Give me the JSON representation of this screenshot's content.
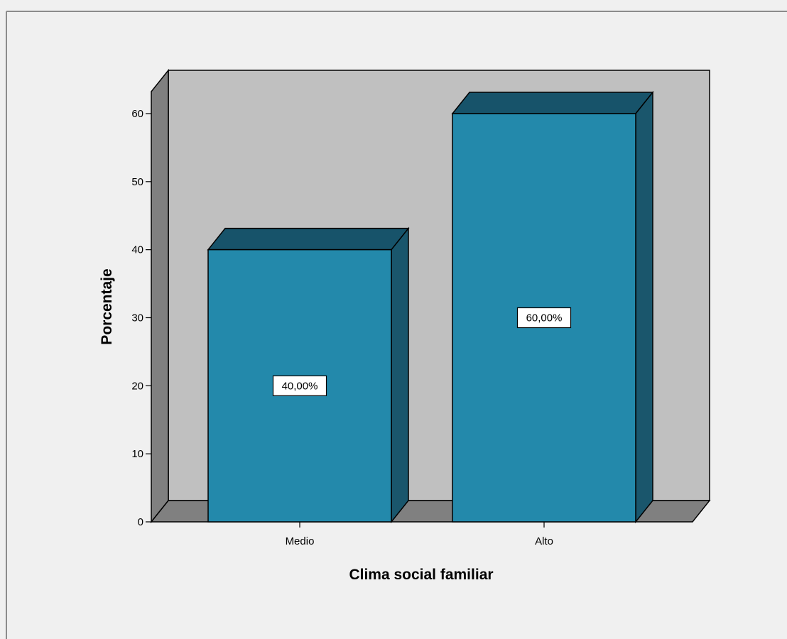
{
  "chart_data": {
    "type": "bar",
    "categories": [
      "Medio",
      "Alto"
    ],
    "values": [
      40,
      60
    ],
    "data_labels": [
      "40,00%",
      "60,00%"
    ],
    "xlabel": "Clima social familiar",
    "ylabel": "Porcentaje",
    "ylim": [
      0,
      60
    ],
    "yticks": [
      "0",
      "10",
      "20",
      "30",
      "40",
      "50",
      "60"
    ],
    "three_d": true,
    "grid": false,
    "legend": "none",
    "colors": {
      "bar_front": "#2389ab",
      "bar_top": "#17536a",
      "bar_side": "#1a566c",
      "back_wall": "#c0c0c0",
      "side_wall": "#808080",
      "floor": "#808080",
      "background": "#f0f0f0",
      "frame_border": "#8c8c8c"
    }
  }
}
